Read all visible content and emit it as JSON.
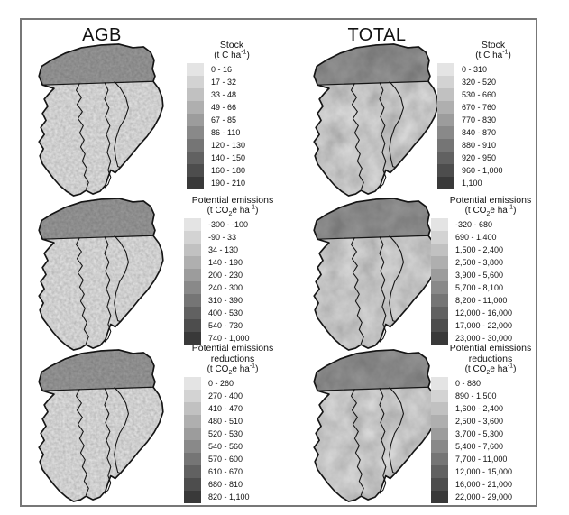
{
  "figure": {
    "border_color": "#777777",
    "map_outline_color": "#151515",
    "ramp": [
      "#e4e4e4",
      "#d3d3d3",
      "#c1c1c1",
      "#afafaf",
      "#9c9c9c",
      "#898989",
      "#757575",
      "#616161",
      "#4d4d4d",
      "#393939"
    ],
    "columns": [
      {
        "title": "AGB",
        "panels": [
          {
            "legend": {
              "title_lines": [
                "Stock"
              ],
              "unit_parts": [
                {
                  "t": "(t C ha"
                },
                {
                  "t": "-1",
                  "pos": "sup"
                },
                {
                  "t": ")"
                }
              ],
              "ranges": [
                "0 - 16",
                "17 - 32",
                "33 - 48",
                "49 - 66",
                "67 - 85",
                "86 - 110",
                "120 - 130",
                "140 - 150",
                "160 - 180",
                "190 - 210"
              ]
            }
          },
          {
            "legend": {
              "title_lines": [
                "Potential emissions"
              ],
              "unit_parts": [
                {
                  "t": "(t CO"
                },
                {
                  "t": "2",
                  "pos": "sub"
                },
                {
                  "t": "e ha"
                },
                {
                  "t": "-1",
                  "pos": "sup"
                },
                {
                  "t": ")"
                }
              ],
              "ranges": [
                "-300 - -100",
                "-90 - 33",
                "34 - 130",
                "140 - 190",
                "200 - 230",
                "240 - 300",
                "310 - 390",
                "400 - 530",
                "540 - 730",
                "740 - 1,000"
              ]
            }
          },
          {
            "legend": {
              "title_lines": [
                "Potential emissions",
                "reductions"
              ],
              "unit_parts": [
                {
                  "t": "(t CO"
                },
                {
                  "t": "2",
                  "pos": "sub"
                },
                {
                  "t": "e ha"
                },
                {
                  "t": "-1",
                  "pos": "sup"
                },
                {
                  "t": ")"
                }
              ],
              "ranges": [
                "0 - 260",
                "270 - 400",
                "410 - 470",
                "480 - 510",
                "520 - 530",
                "540 - 560",
                "570 - 600",
                "610 - 670",
                "680 - 810",
                "820 - 1,100"
              ]
            }
          }
        ]
      },
      {
        "title": "TOTAL",
        "panels": [
          {
            "legend": {
              "title_lines": [
                "Stock"
              ],
              "unit_parts": [
                {
                  "t": "(t C ha"
                },
                {
                  "t": "-1",
                  "pos": "sup"
                },
                {
                  "t": ")"
                }
              ],
              "ranges": [
                "0 - 310",
                "320 - 520",
                "530 - 660",
                "670 - 760",
                "770 - 830",
                "840 - 870",
                "880 - 910",
                "920 - 950",
                "960 - 1,000",
                "1,100"
              ]
            }
          },
          {
            "legend": {
              "title_lines": [
                "Potential emissions"
              ],
              "unit_parts": [
                {
                  "t": "(t CO"
                },
                {
                  "t": "2",
                  "pos": "sub"
                },
                {
                  "t": "e ha"
                },
                {
                  "t": "-1",
                  "pos": "sup"
                },
                {
                  "t": ")"
                }
              ],
              "ranges": [
                "-320 - 680",
                "690 - 1,400",
                "1,500 - 2,400",
                "2,500 - 3,800",
                "3,900 - 5,600",
                "5,700 - 8,100",
                "8,200 - 11,000",
                "12,000 - 16,000",
                "17,000 - 22,000",
                "23,000 - 30,000"
              ]
            }
          },
          {
            "legend": {
              "title_lines": [
                "Potential emissions",
                "reductions"
              ],
              "unit_parts": [
                {
                  "t": "(t CO"
                },
                {
                  "t": "2",
                  "pos": "sub"
                },
                {
                  "t": "e ha"
                },
                {
                  "t": "-1",
                  "pos": "sup"
                },
                {
                  "t": ")"
                }
              ],
              "ranges": [
                "0 - 880",
                "890 - 1,500",
                "1,600 - 2,400",
                "2,500 - 3,600",
                "3,700 - 5,300",
                "5,400 - 7,600",
                "7,700 - 11,000",
                "12,000 - 15,000",
                "16,000 - 21,000",
                "22,000 - 29,000"
              ]
            }
          }
        ]
      }
    ]
  }
}
